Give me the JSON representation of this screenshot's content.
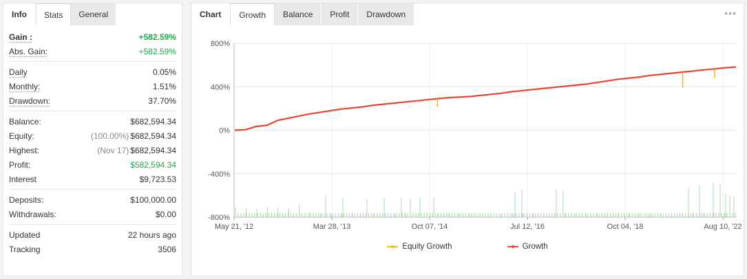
{
  "left": {
    "tabs": [
      "Info",
      "Stats",
      "General"
    ],
    "active_tab": "Stats",
    "groups": [
      [
        {
          "label": "Gain :",
          "value": "+582.59%",
          "style": "gain"
        },
        {
          "label": "Abs. Gain:",
          "value": "+582.59%",
          "style": "absgain"
        }
      ],
      [
        {
          "label": "Daily",
          "value": "0.05%"
        },
        {
          "label": "Monthly:",
          "value": "1.51%"
        },
        {
          "label": "Drawdown:",
          "value": "37.70%"
        }
      ],
      [
        {
          "label": "Balance:",
          "value": "$682,594.34"
        },
        {
          "label": "Equity:",
          "note": "(100.00%)",
          "value": "$682,594.34"
        },
        {
          "label": "Highest:",
          "note": "(Nov 17)",
          "value": "$682,594.34"
        },
        {
          "label": "Profit:",
          "value": "$582,594.34",
          "style": "profit"
        },
        {
          "label": "Interest",
          "value": "$9,723.53"
        }
      ],
      [
        {
          "label": "Deposits:",
          "value": "$100,000.00"
        },
        {
          "label": "Withdrawals:",
          "value": "$0.00"
        }
      ],
      [
        {
          "label": "Updated",
          "value": "22 hours ago"
        },
        {
          "label": "Tracking",
          "value": "3506"
        }
      ]
    ]
  },
  "right": {
    "tabs": [
      "Chart",
      "Growth",
      "Balance",
      "Profit",
      "Drawdown"
    ],
    "active_tab": "Growth",
    "more_icon": "more-dots-icon"
  },
  "chart_data": {
    "type": "line",
    "y_ticks": [
      "800%",
      "400%",
      "0%",
      "-400%",
      "-800%"
    ],
    "ylim": [
      -800,
      800
    ],
    "x_ticks": [
      "May 21, '12",
      "Mar 28, '13",
      "Oct 07, '14",
      "Jul 12, '16",
      "Oct 04, '18",
      "Aug 10, '22"
    ],
    "legend": [
      {
        "name": "Equity Growth",
        "color": "#f7b500"
      },
      {
        "name": "Growth",
        "color": "#e8452c"
      }
    ],
    "series": [
      {
        "name": "Growth",
        "color": "#e8452c",
        "values": [
          0,
          5,
          35,
          45,
          90,
          110,
          130,
          150,
          165,
          180,
          195,
          205,
          215,
          230,
          240,
          250,
          260,
          270,
          280,
          290,
          300,
          305,
          310,
          320,
          330,
          340,
          355,
          365,
          375,
          385,
          395,
          405,
          415,
          425,
          440,
          455,
          470,
          480,
          490,
          505,
          515,
          525,
          535,
          545,
          555,
          565,
          575,
          582.59
        ]
      }
    ],
    "equity_dips": [
      {
        "index": 10,
        "value": 205
      },
      {
        "index": 19,
        "value": 215
      },
      {
        "index": 42,
        "value": 390
      },
      {
        "index": 45,
        "value": 480
      }
    ],
    "bars": [
      14,
      13,
      12,
      15,
      14,
      13,
      18,
      6,
      5,
      5,
      4,
      6,
      5,
      5,
      5,
      5,
      5,
      5,
      6,
      5,
      5,
      5,
      5,
      5,
      5,
      5,
      5,
      5,
      5,
      5,
      5,
      5,
      5,
      5,
      5,
      5,
      5,
      5,
      5,
      5,
      5,
      6,
      6,
      6,
      6,
      6,
      6,
      6
    ]
  }
}
